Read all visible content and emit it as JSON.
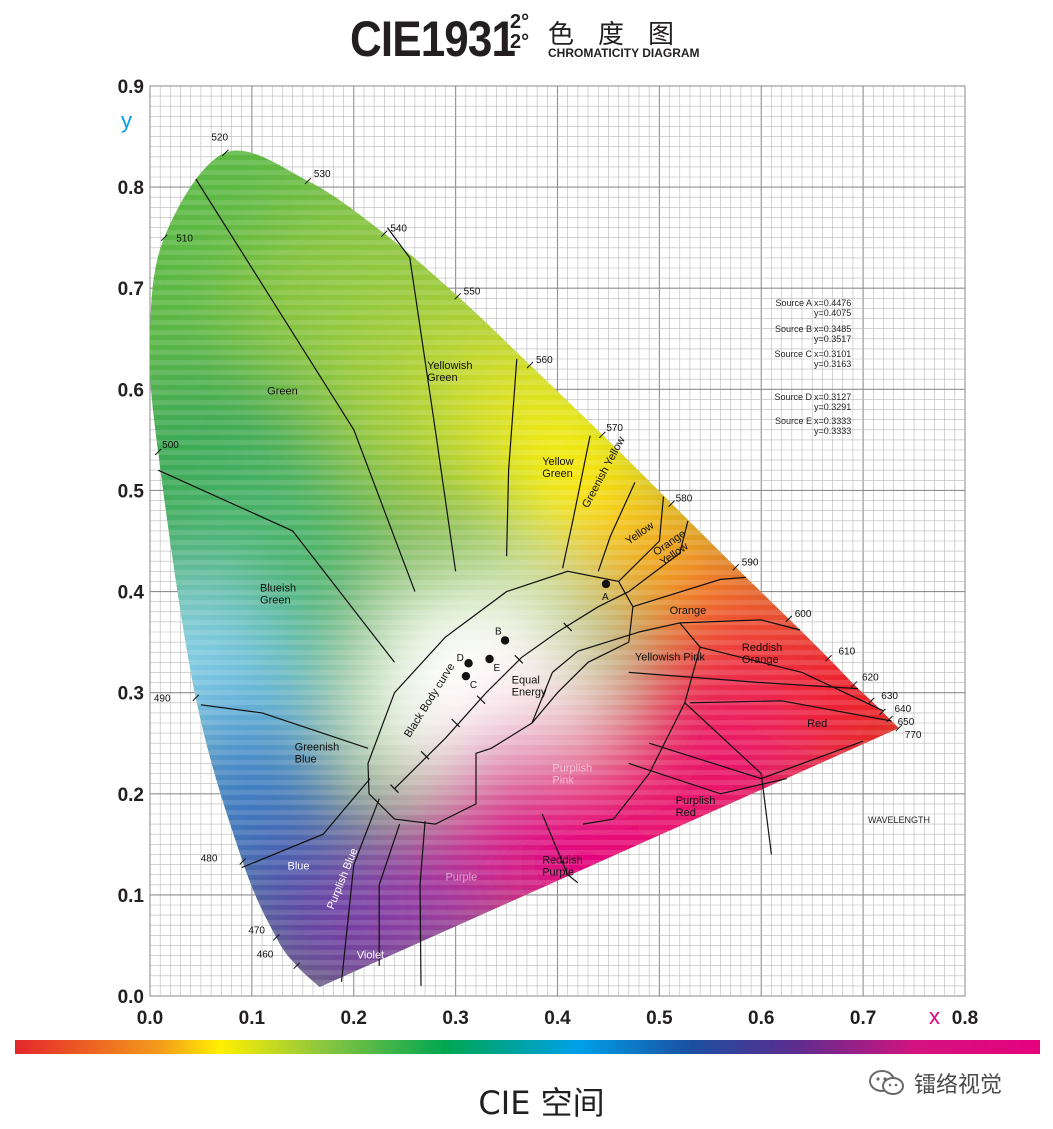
{
  "header": {
    "title_main": "CIE1931",
    "title_degree_top": "2°",
    "title_degree_bottom": "2°",
    "title_cn": "色度图",
    "title_en": "CHROMATICITY DIAGRAM"
  },
  "chart_data": {
    "type": "scatter",
    "title": "CIE1931 2° CHROMATICITY DIAGRAM",
    "xlabel": "x",
    "ylabel": "y",
    "xlim": [
      0,
      0.8
    ],
    "ylim": [
      0,
      0.9
    ],
    "x_ticks": [
      "0.0",
      "0.1",
      "0.2",
      "0.3",
      "0.4",
      "0.5",
      "0.6",
      "0.7",
      "0.8"
    ],
    "y_ticks": [
      "0.0",
      "0.1",
      "0.2",
      "0.3",
      "0.4",
      "0.5",
      "0.6",
      "0.7",
      "0.8",
      "0.9"
    ],
    "grid": true,
    "spectral_locus": [
      {
        "nm": "460",
        "x": 0.144,
        "y": 0.03
      },
      {
        "nm": "470",
        "x": 0.124,
        "y": 0.058
      },
      {
        "nm": "480",
        "x": 0.091,
        "y": 0.133
      },
      {
        "nm": "490",
        "x": 0.045,
        "y": 0.295
      },
      {
        "nm": "500",
        "x": 0.008,
        "y": 0.538
      },
      {
        "nm": "510",
        "x": 0.014,
        "y": 0.75
      },
      {
        "nm": "520",
        "x": 0.074,
        "y": 0.834
      },
      {
        "nm": "530",
        "x": 0.155,
        "y": 0.806
      },
      {
        "nm": "540",
        "x": 0.23,
        "y": 0.754
      },
      {
        "nm": "550",
        "x": 0.302,
        "y": 0.692
      },
      {
        "nm": "560",
        "x": 0.373,
        "y": 0.624
      },
      {
        "nm": "570",
        "x": 0.444,
        "y": 0.555
      },
      {
        "nm": "580",
        "x": 0.512,
        "y": 0.487
      },
      {
        "nm": "590",
        "x": 0.575,
        "y": 0.424
      },
      {
        "nm": "600",
        "x": 0.627,
        "y": 0.373
      },
      {
        "nm": "610",
        "x": 0.666,
        "y": 0.334
      },
      {
        "nm": "620",
        "x": 0.691,
        "y": 0.308
      },
      {
        "nm": "630",
        "x": 0.708,
        "y": 0.292
      },
      {
        "nm": "640",
        "x": 0.719,
        "y": 0.281
      },
      {
        "nm": "650",
        "x": 0.726,
        "y": 0.274
      },
      {
        "nm": "770",
        "x": 0.735,
        "y": 0.265
      }
    ],
    "locus_extra_points": [
      {
        "x": 0.1666,
        "y": 0.0089
      },
      {
        "x": 0.0,
        "y": 0.65
      }
    ],
    "points": [
      {
        "label": "A",
        "x": 0.4476,
        "y": 0.4075
      },
      {
        "label": "B",
        "x": 0.3485,
        "y": 0.3517
      },
      {
        "label": "C",
        "x": 0.3101,
        "y": 0.3163
      },
      {
        "label": "D",
        "x": 0.3127,
        "y": 0.3291
      },
      {
        "label": "E",
        "x": 0.3333,
        "y": 0.3333
      }
    ],
    "sources": [
      {
        "label": "Source A",
        "x_text": "x=0.4476",
        "y_text": "y=0.4075"
      },
      {
        "label": "Source B",
        "x_text": "x=0.3485",
        "y_text": "y=0.3517"
      },
      {
        "label": "Source C",
        "x_text": "x=0.3101",
        "y_text": "y=0.3163"
      },
      {
        "label": "Source D",
        "x_text": "x=0.3127",
        "y_text": "y=0.3291"
      },
      {
        "label": "Source E",
        "x_text": "x=0.3333",
        "y_text": "y=0.3333"
      }
    ],
    "region_labels": [
      {
        "text": "Green",
        "x": 0.115,
        "y": 0.595
      },
      {
        "text": "Yellowish\nGreen",
        "x": 0.272,
        "y": 0.62
      },
      {
        "text": "Yellow\nGreen",
        "x": 0.385,
        "y": 0.525
      },
      {
        "text": "Greenish Yellow",
        "x": 0.43,
        "y": 0.482,
        "rotate": -62
      },
      {
        "text": "Yellow",
        "x": 0.47,
        "y": 0.446,
        "rotate": -35
      },
      {
        "text": "Orange\nYellow",
        "x": 0.497,
        "y": 0.435,
        "rotate": -35
      },
      {
        "text": "Orange",
        "x": 0.51,
        "y": 0.378
      },
      {
        "text": "Reddish\nOrange",
        "x": 0.581,
        "y": 0.341
      },
      {
        "text": "Yellowish Pink",
        "x": 0.476,
        "y": 0.332
      },
      {
        "text": "Red",
        "x": 0.645,
        "y": 0.266
      },
      {
        "text": "Blueish\nGreen",
        "x": 0.108,
        "y": 0.4
      },
      {
        "text": "Greenish\nBlue",
        "x": 0.142,
        "y": 0.243
      },
      {
        "text": "Equal\nEnergy",
        "x": 0.355,
        "y": 0.309
      },
      {
        "text": "Purplish\nPink",
        "x": 0.395,
        "y": 0.222
      },
      {
        "text": "Purplish\nRed",
        "x": 0.516,
        "y": 0.19
      },
      {
        "text": "Reddish\nPurple",
        "x": 0.385,
        "y": 0.131
      },
      {
        "text": "Blue",
        "x": 0.135,
        "y": 0.125
      },
      {
        "text": "Purplish Blue",
        "x": 0.18,
        "y": 0.085,
        "rotate": -68
      },
      {
        "text": "Purple",
        "x": 0.29,
        "y": 0.114
      },
      {
        "text": "Violet",
        "x": 0.203,
        "y": 0.037
      },
      {
        "text": "Black Body curve",
        "x": 0.255,
        "y": 0.255,
        "rotate": -58
      }
    ],
    "annotation": "WAVELENGTH"
  },
  "caption": "CIE 空间",
  "watermark": "镭络视觉",
  "colors": {
    "axis_text": "#231f20",
    "x_label": "#e6007e",
    "y_label": "#00a0e9",
    "grid": "#9a9a9a"
  }
}
